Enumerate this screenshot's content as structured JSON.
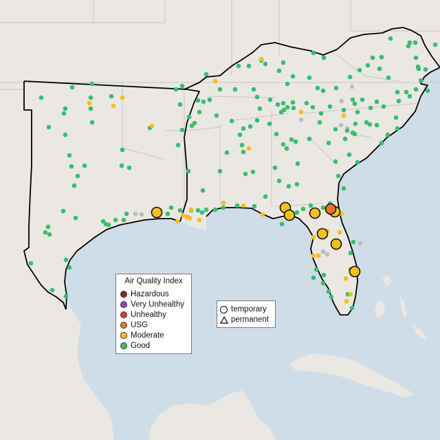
{
  "legend": {
    "title": "Air Quality Index",
    "categories": [
      {
        "label": "Hazardous",
        "color": "#7e2c2c"
      },
      {
        "label": "Very Unhealthy",
        "color": "#8e4bb0"
      },
      {
        "label": "Unhealthy",
        "color": "#e23b2e"
      },
      {
        "label": "USG",
        "color": "#e37a1b"
      },
      {
        "label": "Moderate",
        "color": "#f2c11a"
      },
      {
        "label": "Good",
        "color": "#35c06e"
      }
    ]
  },
  "monitor_types": {
    "temporary": "temporary",
    "permanent": "permanent"
  },
  "colors": {
    "water": "#cfdde9",
    "land": "#ebe7e3",
    "state_line": "#c9c5c1",
    "region_outline": "#000000",
    "inactive_monitor": "#bdbdbd"
  }
}
